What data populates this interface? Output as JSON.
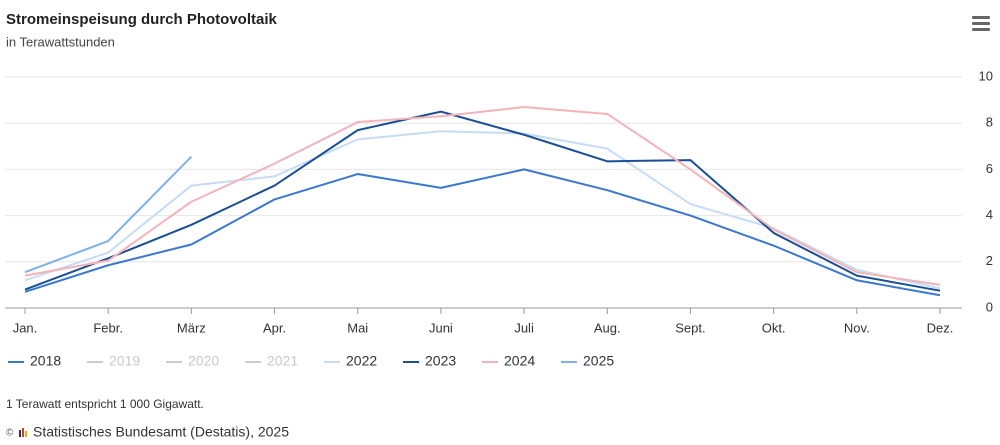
{
  "chart_data": {
    "type": "line",
    "title": "Stromeinspeisung durch Photovoltaik",
    "subtitle": "in Terawattstunden",
    "categories": [
      "Jan.",
      "Febr.",
      "März",
      "Apr.",
      "Mai",
      "Juni",
      "Juli",
      "Aug.",
      "Sept.",
      "Okt.",
      "Nov.",
      "Dez."
    ],
    "series": [
      {
        "name": "2018",
        "color": "#3a78d0",
        "values": [
          0.7,
          1.85,
          2.75,
          4.7,
          5.8,
          5.2,
          6.0,
          5.1,
          4.0,
          2.7,
          1.2,
          0.55
        ]
      },
      {
        "name": "2019",
        "color": "#cccccc",
        "visible": false
      },
      {
        "name": "2020",
        "color": "#cccccc",
        "visible": false
      },
      {
        "name": "2021",
        "color": "#cccccc",
        "visible": false
      },
      {
        "name": "2022",
        "color": "#c6dcf5",
        "values": [
          1.2,
          2.4,
          5.3,
          5.7,
          7.3,
          7.65,
          7.55,
          6.9,
          4.5,
          3.45,
          1.65,
          0.85
        ]
      },
      {
        "name": "2023",
        "color": "#1a4f96",
        "values": [
          0.8,
          2.15,
          3.6,
          5.3,
          7.7,
          8.5,
          7.5,
          6.35,
          6.4,
          3.25,
          1.4,
          0.75
        ]
      },
      {
        "name": "2024",
        "color": "#f4b3b8",
        "values": [
          1.4,
          2.05,
          4.6,
          6.25,
          8.05,
          8.3,
          8.7,
          8.4,
          6.0,
          3.4,
          1.55,
          1.0
        ]
      },
      {
        "name": "2025",
        "color": "#7fb0ee",
        "values": [
          1.55,
          2.9,
          6.55,
          null,
          null,
          null,
          null,
          null,
          null,
          null,
          null,
          null
        ]
      }
    ],
    "ylim": [
      0,
      10
    ],
    "yticks": [
      0,
      2,
      4,
      6,
      8,
      10
    ],
    "grid": true,
    "note": "1 Terawatt entspricht 1 000 Gigawatt.",
    "source": "Statistisches Bundesamt (Destatis), 2025"
  }
}
